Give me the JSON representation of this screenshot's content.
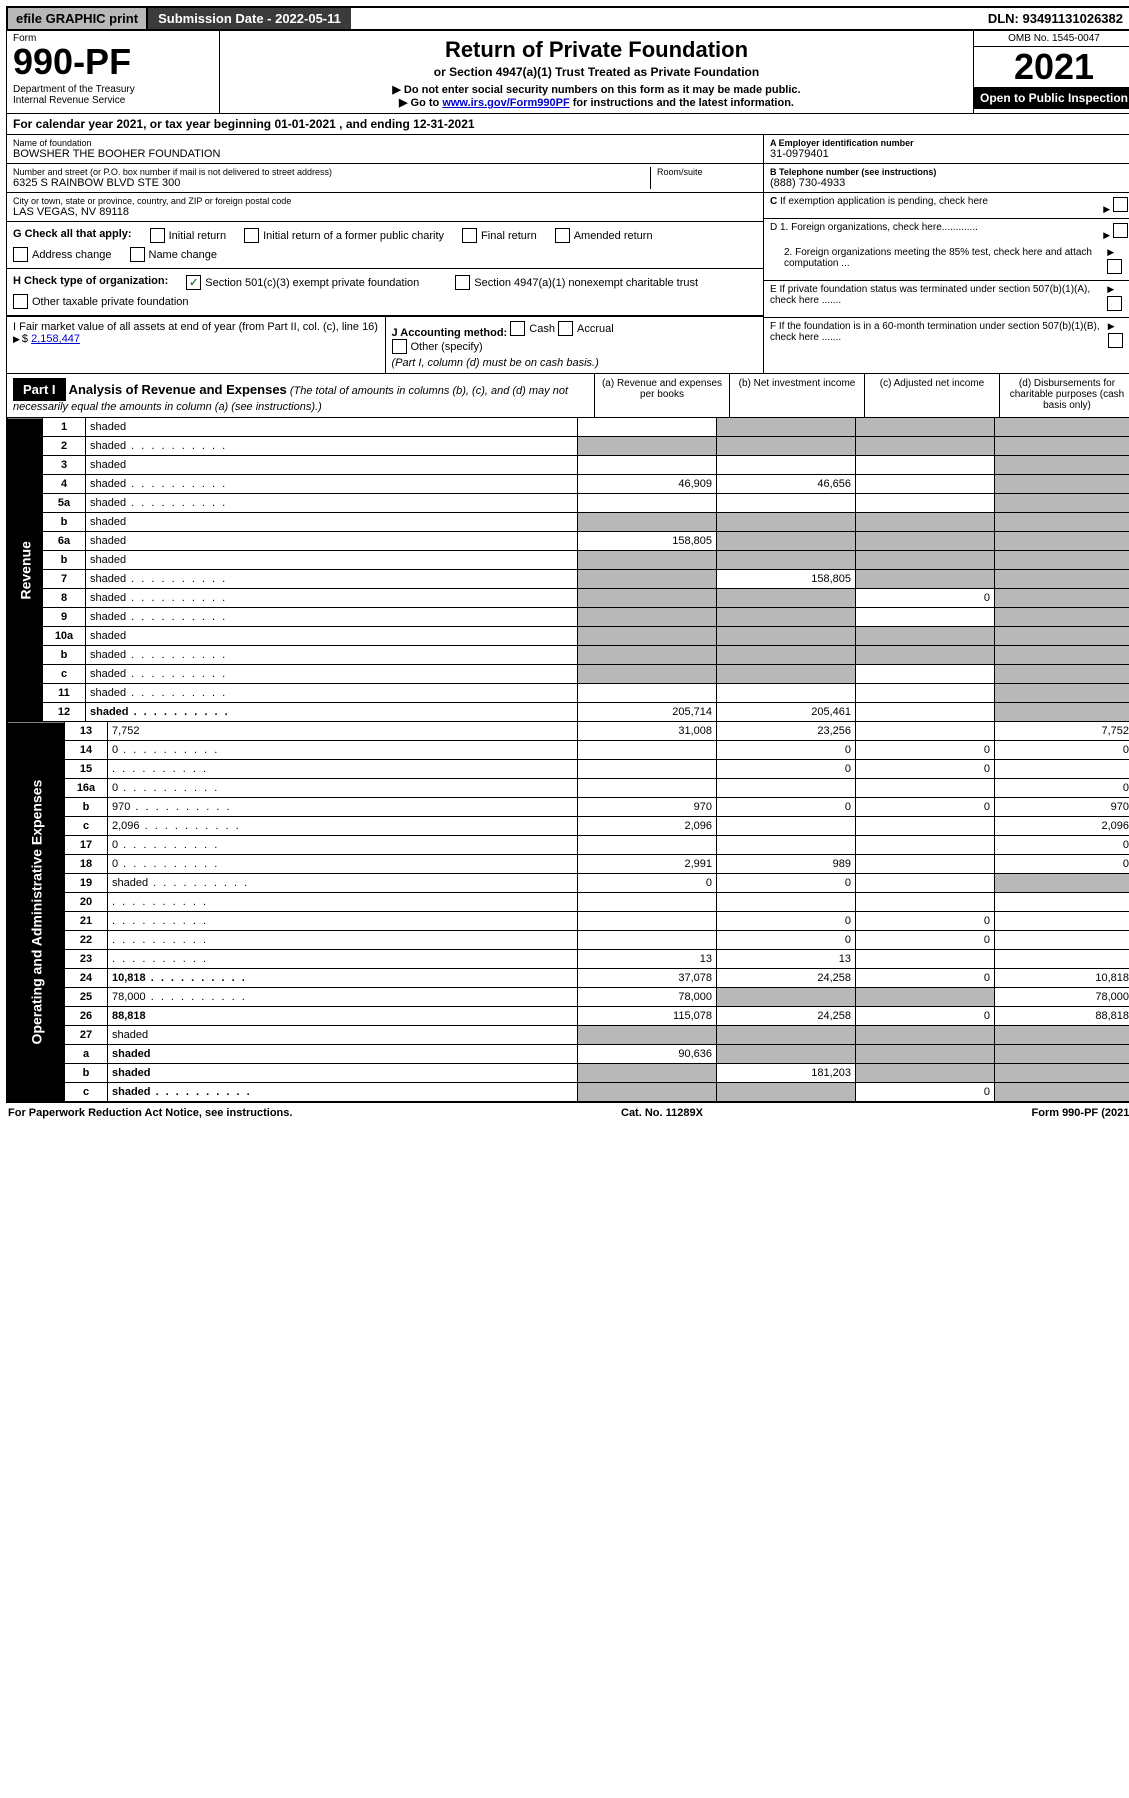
{
  "top_bar": {
    "efile": "efile GRAPHIC print",
    "submission_label": "Submission Date - 2022-05-11",
    "dln": "DLN: 93491131026382"
  },
  "header": {
    "form_word": "Form",
    "form_number": "990-PF",
    "dept": "Department of the Treasury\nInternal Revenue Service",
    "title": "Return of Private Foundation",
    "subtitle": "or Section 4947(a)(1) Trust Treated as Private Foundation",
    "note1": "▶ Do not enter social security numbers on this form as it may be made public.",
    "note2_pre": "▶ Go to ",
    "note2_link": "www.irs.gov/Form990PF",
    "note2_post": " for instructions and the latest information.",
    "omb": "OMB No. 1545-0047",
    "year": "2021",
    "open_public": "Open to Public Inspection"
  },
  "cal_year": "For calendar year 2021, or tax year beginning 01-01-2021           , and ending 12-31-2021",
  "entity": {
    "name_lbl": "Name of foundation",
    "name": "BOWSHER THE BOOHER FOUNDATION",
    "addr_lbl": "Number and street (or P.O. box number if mail is not delivered to street address)",
    "addr": "6325 S RAINBOW BLVD STE 300",
    "room_lbl": "Room/suite",
    "city_lbl": "City or town, state or province, country, and ZIP or foreign postal code",
    "city": "LAS VEGAS, NV  89118"
  },
  "right_info": {
    "a_lbl": "A Employer identification number",
    "a_val": "31-0979401",
    "b_lbl": "B Telephone number (see instructions)",
    "b_val": "(888) 730-4933",
    "c_lbl": "C If exemption application is pending, check here",
    "d1": "D 1. Foreign organizations, check here.............",
    "d2": "2. Foreign organizations meeting the 85% test, check here and attach computation ...",
    "e": "E If private foundation status was terminated under section 507(b)(1)(A), check here .......",
    "f": "F If the foundation is in a 60-month termination under section 507(b)(1)(B), check here .......",
    "g_lbl": "G Check all that apply:",
    "g_opts": [
      "Initial return",
      "Initial return of a former public charity",
      "Final return",
      "Amended return",
      "Address change",
      "Name change"
    ],
    "h_lbl": "H Check type of organization:",
    "h_opts": [
      "Section 501(c)(3) exempt private foundation",
      "Section 4947(a)(1) nonexempt charitable trust",
      "Other taxable private foundation"
    ],
    "i_lbl": "I Fair market value of all assets at end of year (from Part II, col. (c), line 16)",
    "i_val": "2,158,447",
    "j_lbl": "J Accounting method:",
    "j_opts": [
      "Cash",
      "Accrual",
      "Other (specify)"
    ],
    "j_note": "(Part I, column (d) must be on cash basis.)"
  },
  "part1": {
    "label": "Part I",
    "title": "Analysis of Revenue and Expenses",
    "title_note": "(The total of amounts in columns (b), (c), and (d) may not necessarily equal the amounts in column (a) (see instructions).)",
    "col_a": "(a)   Revenue and expenses per books",
    "col_b": "(b)   Net investment income",
    "col_c": "(c)   Adjusted net income",
    "col_d": "(d)   Disbursements for charitable purposes (cash basis only)",
    "revenue_label": "Revenue",
    "expenses_label": "Operating and Administrative Expenses"
  },
  "rows": [
    {
      "n": "1",
      "d": "shaded",
      "a": "",
      "b": "shaded",
      "c": "shaded"
    },
    {
      "n": "2",
      "d": "shaded",
      "a": "shaded",
      "b": "shaded",
      "c": "shaded",
      "dots": true
    },
    {
      "n": "3",
      "d": "shaded",
      "a": "",
      "b": "",
      "c": ""
    },
    {
      "n": "4",
      "d": "shaded",
      "a": "46,909",
      "b": "46,656",
      "c": "",
      "dots": true
    },
    {
      "n": "5a",
      "d": "shaded",
      "a": "",
      "b": "",
      "c": "",
      "dots": true
    },
    {
      "n": "b",
      "d": "shaded",
      "a": "shaded",
      "b": "shaded",
      "c": "shaded"
    },
    {
      "n": "6a",
      "d": "shaded",
      "a": "158,805",
      "b": "shaded",
      "c": "shaded"
    },
    {
      "n": "b",
      "d": "shaded",
      "a": "shaded",
      "b": "shaded",
      "c": "shaded"
    },
    {
      "n": "7",
      "d": "shaded",
      "a": "shaded",
      "b": "158,805",
      "c": "shaded",
      "dots": true
    },
    {
      "n": "8",
      "d": "shaded",
      "a": "shaded",
      "b": "shaded",
      "c": "0",
      "dots": true
    },
    {
      "n": "9",
      "d": "shaded",
      "a": "shaded",
      "b": "shaded",
      "c": "",
      "dots": true
    },
    {
      "n": "10a",
      "d": "shaded",
      "a": "shaded",
      "b": "shaded",
      "c": "shaded"
    },
    {
      "n": "b",
      "d": "shaded",
      "a": "shaded",
      "b": "shaded",
      "c": "shaded",
      "dots": true
    },
    {
      "n": "c",
      "d": "shaded",
      "a": "shaded",
      "b": "shaded",
      "c": "",
      "dots": true
    },
    {
      "n": "11",
      "d": "shaded",
      "a": "",
      "b": "",
      "c": "",
      "dots": true
    },
    {
      "n": "12",
      "d": "shaded",
      "a": "205,714",
      "b": "205,461",
      "c": "",
      "bold": true,
      "dots": true
    }
  ],
  "exp_rows": [
    {
      "n": "13",
      "d": "7,752",
      "a": "31,008",
      "b": "23,256",
      "c": ""
    },
    {
      "n": "14",
      "d": "0",
      "a": "",
      "b": "0",
      "c": "0",
      "dots": true
    },
    {
      "n": "15",
      "d": "",
      "a": "",
      "b": "0",
      "c": "0",
      "dots": true
    },
    {
      "n": "16a",
      "d": "0",
      "a": "",
      "b": "",
      "c": "",
      "dots": true
    },
    {
      "n": "b",
      "d": "970",
      "a": "970",
      "b": "0",
      "c": "0",
      "dots": true
    },
    {
      "n": "c",
      "d": "2,096",
      "a": "2,096",
      "b": "",
      "c": "",
      "dots": true
    },
    {
      "n": "17",
      "d": "0",
      "a": "",
      "b": "",
      "c": "",
      "dots": true
    },
    {
      "n": "18",
      "d": "0",
      "a": "2,991",
      "b": "989",
      "c": "",
      "dots": true
    },
    {
      "n": "19",
      "d": "shaded",
      "a": "0",
      "b": "0",
      "c": "",
      "dots": true
    },
    {
      "n": "20",
      "d": "",
      "a": "",
      "b": "",
      "c": "",
      "dots": true
    },
    {
      "n": "21",
      "d": "",
      "a": "",
      "b": "0",
      "c": "0",
      "dots": true
    },
    {
      "n": "22",
      "d": "",
      "a": "",
      "b": "0",
      "c": "0",
      "dots": true
    },
    {
      "n": "23",
      "d": "",
      "a": "13",
      "b": "13",
      "c": "",
      "dots": true
    },
    {
      "n": "24",
      "d": "10,818",
      "a": "37,078",
      "b": "24,258",
      "c": "0",
      "bold": true,
      "dots": true
    },
    {
      "n": "25",
      "d": "78,000",
      "a": "78,000",
      "b": "shaded",
      "c": "shaded",
      "dots": true
    },
    {
      "n": "26",
      "d": "88,818",
      "a": "115,078",
      "b": "24,258",
      "c": "0",
      "bold": true
    },
    {
      "n": "27",
      "d": "shaded",
      "a": "shaded",
      "b": "shaded",
      "c": "shaded"
    },
    {
      "n": "a",
      "d": "shaded",
      "a": "90,636",
      "b": "shaded",
      "c": "shaded",
      "bold": true
    },
    {
      "n": "b",
      "d": "shaded",
      "a": "shaded",
      "b": "181,203",
      "c": "shaded",
      "bold": true
    },
    {
      "n": "c",
      "d": "shaded",
      "a": "shaded",
      "b": "shaded",
      "c": "0",
      "bold": true,
      "dots": true
    }
  ],
  "footer": {
    "left": "For Paperwork Reduction Act Notice, see instructions.",
    "mid": "Cat. No. 11289X",
    "right": "Form 990-PF (2021)"
  }
}
